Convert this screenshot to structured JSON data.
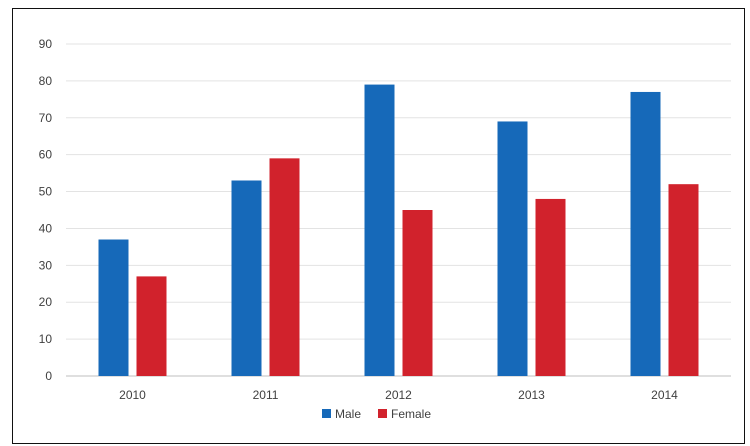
{
  "chart_data": {
    "type": "bar",
    "categories": [
      "2010",
      "2011",
      "2012",
      "2013",
      "2014"
    ],
    "series": [
      {
        "name": "Male",
        "values": [
          37,
          53,
          79,
          69,
          77
        ],
        "color": "#1669B9"
      },
      {
        "name": "Female",
        "values": [
          27,
          59,
          45,
          48,
          52
        ],
        "color": "#D1222C"
      }
    ],
    "title": "",
    "xlabel": "",
    "ylabel": "",
    "ylim": [
      0,
      90
    ],
    "yticks": [
      "0",
      "10",
      "20",
      "30",
      "40",
      "50",
      "60",
      "70",
      "80",
      "90"
    ],
    "grid": true,
    "legend": "bottom-center"
  }
}
